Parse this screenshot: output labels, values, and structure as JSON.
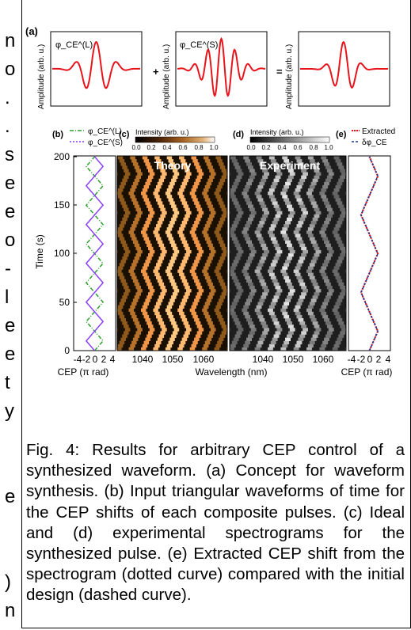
{
  "left_column": {
    "visible_characters": [
      "n",
      "o",
      ".",
      ".",
      "s",
      "e",
      "e",
      "o",
      "-",
      "l",
      "e",
      "e",
      "t",
      "y",
      "",
      "",
      "e",
      "",
      "",
      ")",
      "n"
    ]
  },
  "figure": {
    "panel_a": {
      "label": "(a)",
      "ylabel": "Amplitude (arb. u.)",
      "pulse_labels": [
        "φ_CE^(L)",
        "φ_CE^(S)"
      ],
      "operators": [
        "+",
        "="
      ],
      "waveform_color": "#e8141c"
    },
    "panel_b": {
      "label": "(b)",
      "legend": [
        "φ_CE^(L)",
        "φ_CE^(S)"
      ],
      "legend_colors": [
        "#2ca02c",
        "#8a3ffc"
      ],
      "ylabel": "Time (s)",
      "xlabel": "CEP (π rad)",
      "xticks": [
        "-4",
        "-2",
        "0",
        "2",
        "4"
      ],
      "yticks": [
        "0",
        "50",
        "100",
        "150",
        "200"
      ]
    },
    "panel_c": {
      "label": "(c)",
      "colorbar_title": "Intensity (arb. u.)",
      "colorbar_ticks": [
        "0.0",
        "0.2",
        "0.4",
        "0.6",
        "0.8",
        "1.0"
      ],
      "panel_title": "Theory",
      "xticks": [
        "1040",
        "1050",
        "1060"
      ]
    },
    "panel_d": {
      "label": "(d)",
      "colorbar_title": "Intensity (arb. u.)",
      "colorbar_ticks": [
        "0.0",
        "0.2",
        "0.4",
        "0.6",
        "0.8",
        "1.0"
      ],
      "panel_title": "Experiment",
      "xticks": [
        "1040",
        "1050",
        "1060"
      ]
    },
    "shared_xlabel": "Wavelength (nm)",
    "panel_e": {
      "label": "(e)",
      "legend": [
        "Extracted",
        "δφ_CE"
      ],
      "legend_colors": [
        "#e8141c",
        "#1f3a93"
      ],
      "xlabel": "CEP (π rad)",
      "xticks": [
        "-4",
        "-2",
        "0",
        "2",
        "4"
      ]
    }
  },
  "caption": "Fig. 4: Results for arbitrary CEP control of a synthesized waveform. (a) Concept for waveform synthesis. (b) Input triangular waveforms of time for the CEP shifts of each composite pulses. (c) Ideal and (d) experimental spectrograms for the synthesized pulse. (e) Extracted CEP shift from the spectrogram (dotted curve) compared with the initial design (dashed curve)."
}
